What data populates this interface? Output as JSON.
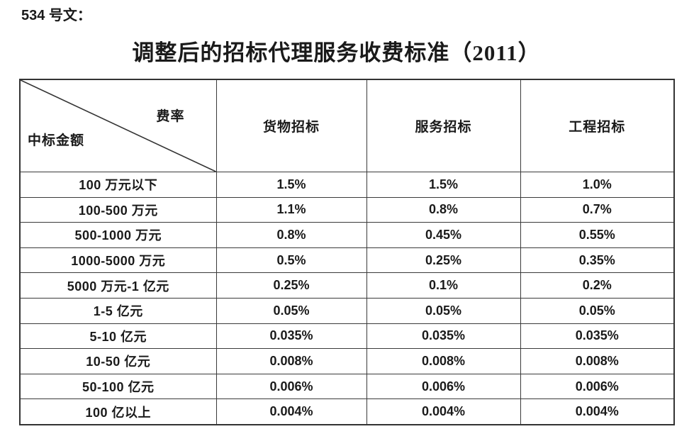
{
  "page": {
    "doc_label": "534 号文：",
    "title": "调整后的招标代理服务收费标准（2011）"
  },
  "table": {
    "corner": {
      "top_right": "费率",
      "bottom_left": "中标金额"
    },
    "columns": [
      "货物招标",
      "服务招标",
      "工程招标"
    ],
    "rows": [
      {
        "label": "100 万元以下",
        "values": [
          "1.5%",
          "1.5%",
          "1.0%"
        ]
      },
      {
        "label": "100-500 万元",
        "values": [
          "1.1%",
          "0.8%",
          "0.7%"
        ]
      },
      {
        "label": "500-1000 万元",
        "values": [
          "0.8%",
          "0.45%",
          "0.55%"
        ]
      },
      {
        "label": "1000-5000 万元",
        "values": [
          "0.5%",
          "0.25%",
          "0.35%"
        ]
      },
      {
        "label": "5000 万元-1 亿元",
        "values": [
          "0.25%",
          "0.1%",
          "0.2%"
        ]
      },
      {
        "label": "1-5 亿元",
        "values": [
          "0.05%",
          "0.05%",
          "0.05%"
        ]
      },
      {
        "label": "5-10 亿元",
        "values": [
          "0.035%",
          "0.035%",
          "0.035%"
        ]
      },
      {
        "label": "10-50 亿元",
        "values": [
          "0.008%",
          "0.008%",
          "0.008%"
        ]
      },
      {
        "label": "50-100 亿元",
        "values": [
          "0.006%",
          "0.006%",
          "0.006%"
        ]
      },
      {
        "label": "100 亿以上",
        "values": [
          "0.004%",
          "0.004%",
          "0.004%"
        ]
      }
    ],
    "colors": {
      "border": "#333333",
      "text": "#1a1a1a",
      "background": "#ffffff"
    }
  }
}
